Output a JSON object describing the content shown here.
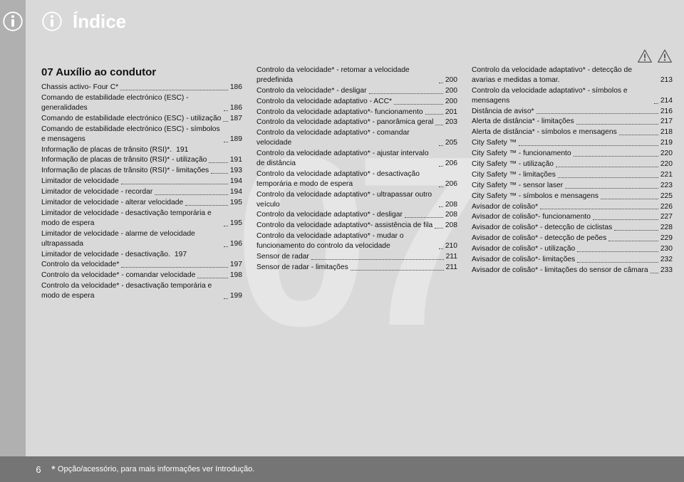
{
  "page_number": "6",
  "header_title": "Índice",
  "footer_note": " Opção/acessório, para mais informações ver Introdução.",
  "section_heading": "07 Auxílio ao condutor",
  "watermark": "07",
  "colors": {
    "page_bg": "#d9d9d9",
    "outer_bg": "#b0b0b0",
    "footer_bg": "#757575",
    "text": "#111111",
    "header_text": "#ffffff"
  },
  "columns": [
    [
      {
        "t": "Chassis activo- Four C*",
        "p": "186"
      },
      {
        "t": "Comando de estabilidade electrónico (ESC) - generalidades",
        "p": "186"
      },
      {
        "t": "Comando de estabilidade electrónico (ESC) - utilização",
        "p": "187"
      },
      {
        "t": "Comando de estabilidade electrónico (ESC) - símbolos e mensagens",
        "p": "189"
      },
      {
        "t": "Informação de placas de trânsito (RSI)*.",
        "p": "191",
        "nodots": true
      },
      {
        "t": "Informação de placas de trânsito (RSI)* - utilização",
        "p": "191"
      },
      {
        "t": "Informação de placas de trânsito (RSI)* - limitações",
        "p": "193"
      },
      {
        "t": "Limitador de velocidade",
        "p": "194"
      },
      {
        "t": "Limitador de velocidade - recordar",
        "p": "194"
      },
      {
        "t": "Limitador de velocidade - alterar velocidade",
        "p": "195"
      },
      {
        "t": "Limitador de velocidade - desactivação temporária e modo de espera",
        "p": "195"
      },
      {
        "t": "Limitador de velocidade - alarme de velocidade ultrapassada",
        "p": "196"
      },
      {
        "t": "Limitador de velocidade - desactivação.",
        "p": "197",
        "nodots": true
      },
      {
        "t": "Controlo da velocidade*",
        "p": "197"
      },
      {
        "t": "Controlo da velocidade* - comandar velocidade",
        "p": "198"
      },
      {
        "t": "Controlo da velocidade* - desactivação temporária e modo de espera",
        "p": "199"
      }
    ],
    [
      {
        "t": "Controlo da velocidade* - retomar a velocidade predefinida",
        "p": "200"
      },
      {
        "t": "Controlo da velocidade* - desligar",
        "p": "200"
      },
      {
        "t": "Controlo da velocidade adaptativo - ACC*",
        "p": "200"
      },
      {
        "t": "Controlo da velocidade adaptativo*- funcionamento",
        "p": "201"
      },
      {
        "t": "Controlo da velocidade adaptativo* - panorâmica geral",
        "p": "203"
      },
      {
        "t": "Controlo da velocidade adaptativo* - comandar velocidade",
        "p": "205"
      },
      {
        "t": "Controlo da velocidade adaptativo* - ajustar intervalo de distância",
        "p": "206"
      },
      {
        "t": "Controlo da velocidade adaptativo* - desactivação temporária e modo de espera",
        "p": "206"
      },
      {
        "t": "Controlo da velocidade adaptativo* - ultrapassar outro veículo",
        "p": "208"
      },
      {
        "t": "Controlo da velocidade adaptativo* - desligar",
        "p": "208"
      },
      {
        "t": "Controlo da velocidade adaptativo*- assistência de fila",
        "p": "208"
      },
      {
        "t": "Controlo da velocidade adaptativo* - mudar o funcionamento do controlo da velocidade",
        "p": "210"
      },
      {
        "t": "Sensor de radar",
        "p": "211"
      },
      {
        "t": "Sensor de radar - limitações",
        "p": "211"
      }
    ],
    [
      {
        "t": "Controlo da velocidade adaptativo* - detecção de avarias e medidas a tomar.",
        "p": "213",
        "nodots": true
      },
      {
        "t": "Controlo da velocidade adaptativo* - símbolos e mensagens",
        "p": "214"
      },
      {
        "t": "Distância de aviso*",
        "p": "216"
      },
      {
        "t": "Alerta de distância* - limitações",
        "p": "217"
      },
      {
        "t": "Alerta de distância* - símbolos e mensagens",
        "p": "218"
      },
      {
        "t": "City Safety ™",
        "p": "219"
      },
      {
        "t": "City Safety ™ - funcionamento",
        "p": "220"
      },
      {
        "t": "City Safety ™ - utilização",
        "p": "220"
      },
      {
        "t": "City Safety ™ - limitações",
        "p": "221"
      },
      {
        "t": "City Safety ™ - sensor laser",
        "p": "223"
      },
      {
        "t": "City Safety ™ - símbolos e mensagens",
        "p": "225"
      },
      {
        "t": "Avisador de colisão*",
        "p": "226"
      },
      {
        "t": "Avisador de colisão*- funcionamento",
        "p": "227"
      },
      {
        "t": "Avisador de colisão* - detecção de ciclistas",
        "p": "228"
      },
      {
        "t": "Avisador de colisão* - detecção de peões",
        "p": "229"
      },
      {
        "t": "Avisador de colisão* - utilização",
        "p": "230"
      },
      {
        "t": "Avisador de colisão*- limitações",
        "p": "232"
      },
      {
        "t": "Avisador de colisão* - limitações do sensor de câmara",
        "p": "233"
      }
    ]
  ]
}
